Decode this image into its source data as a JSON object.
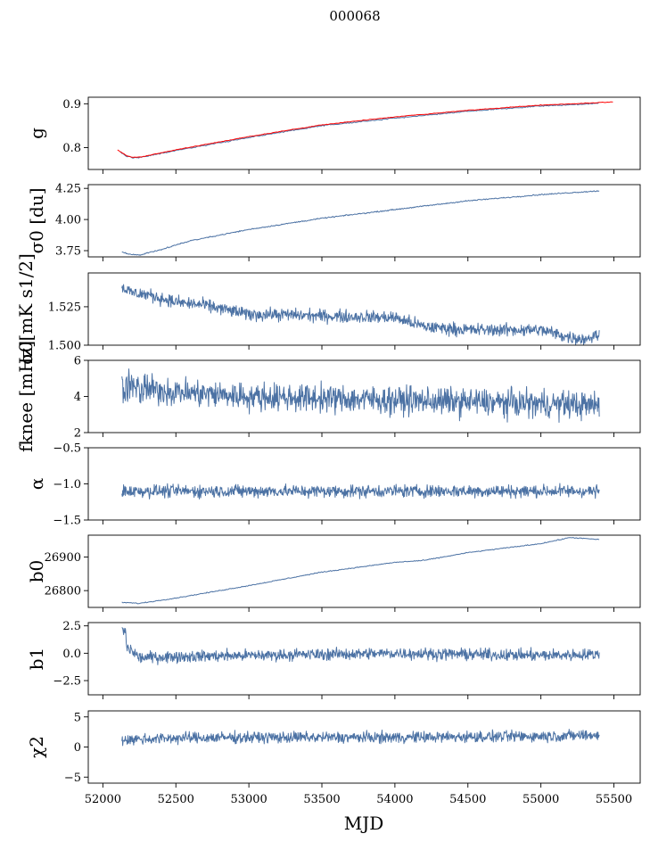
{
  "figure": {
    "title": "000068"
  },
  "colors": {
    "series": "#4c72a4",
    "fit": "#ff0000"
  },
  "xaxis": {
    "label": "MJD",
    "range": [
      51900,
      55680
    ],
    "ticks": [
      52000,
      52500,
      53000,
      53500,
      54000,
      54500,
      55000,
      55500
    ],
    "tick_labels": [
      "52000",
      "52500",
      "53000",
      "53500",
      "54000",
      "54500",
      "55000",
      "55500"
    ]
  },
  "chart_data": [
    {
      "type": "line",
      "ylabel": "g",
      "ylim": [
        0.75,
        0.915
      ],
      "yticks": [
        0.8,
        0.9
      ],
      "ytick_labels": [
        "0.8",
        "0.9"
      ],
      "series": [
        {
          "role": "data",
          "x": [
            52120,
            52160,
            52200,
            52250,
            52300,
            52500,
            53000,
            53500,
            54000,
            54500,
            55000,
            55400
          ],
          "y": [
            0.79,
            0.78,
            0.777,
            0.778,
            0.78,
            0.793,
            0.823,
            0.85,
            0.867,
            0.883,
            0.895,
            0.901
          ]
        },
        {
          "role": "fit",
          "x": [
            52100,
            52160,
            52200,
            52250,
            52300,
            52500,
            53000,
            53500,
            54000,
            54500,
            55000,
            55500
          ],
          "y": [
            0.795,
            0.782,
            0.778,
            0.778,
            0.781,
            0.795,
            0.825,
            0.852,
            0.87,
            0.885,
            0.897,
            0.904
          ]
        }
      ]
    },
    {
      "type": "line",
      "ylabel": "σ0 [du]",
      "ylim": [
        3.7,
        4.28
      ],
      "yticks": [
        3.75,
        4.0,
        4.25
      ],
      "ytick_labels": [
        "3.75",
        "4.00",
        "4.25"
      ],
      "series": [
        {
          "x": [
            52130,
            52180,
            52250,
            52400,
            52600,
            53000,
            53500,
            54000,
            54500,
            55000,
            55400
          ],
          "y": [
            3.74,
            3.72,
            3.715,
            3.76,
            3.83,
            3.92,
            4.01,
            4.08,
            4.15,
            4.2,
            4.23
          ]
        }
      ]
    },
    {
      "type": "line",
      "ylabel": "σ0[mK s1/2]",
      "ylim": [
        1.5,
        1.547
      ],
      "yticks": [
        1.5,
        1.525
      ],
      "ytick_labels": [
        "1.500",
        "1.525"
      ],
      "series": [
        {
          "x": [
            52130,
            52200,
            52300,
            52500,
            52700,
            53000,
            53200,
            53500,
            54000,
            54200,
            54500,
            54800,
            55000,
            55200,
            55300,
            55400
          ],
          "y": [
            1.538,
            1.534,
            1.533,
            1.528,
            1.526,
            1.52,
            1.52,
            1.519,
            1.518,
            1.512,
            1.51,
            1.51,
            1.51,
            1.505,
            1.504,
            1.507
          ]
        }
      ]
    },
    {
      "type": "line",
      "ylabel": "fknee [mHz]",
      "ylim": [
        2,
        6
      ],
      "yticks": [
        2,
        4,
        6
      ],
      "ytick_labels": [
        "2",
        "4",
        "6"
      ],
      "series": [
        {
          "x": [
            52130,
            52300,
            52600,
            53000,
            53500,
            54000,
            54500,
            55000,
            55400
          ],
          "y": [
            4.6,
            4.4,
            4.2,
            4.0,
            3.9,
            3.8,
            3.7,
            3.6,
            3.5
          ]
        }
      ]
    },
    {
      "type": "line",
      "ylabel": "α",
      "ylim": [
        -1.5,
        -0.5
      ],
      "yticks": [
        -1.5,
        -1.0,
        -0.5
      ],
      "ytick_labels": [
        "−1.5",
        "−1.0",
        "−0.5"
      ],
      "series": [
        {
          "x": [
            52130,
            52500,
            53000,
            53500,
            54000,
            54500,
            55000,
            55400
          ],
          "y": [
            -1.1,
            -1.1,
            -1.1,
            -1.1,
            -1.1,
            -1.1,
            -1.1,
            -1.1
          ]
        }
      ]
    },
    {
      "type": "line",
      "ylabel": "b0",
      "ylim": [
        26750,
        26965
      ],
      "yticks": [
        26800,
        26900
      ],
      "ytick_labels": [
        "26800",
        "26900"
      ],
      "series": [
        {
          "x": [
            52130,
            52250,
            52500,
            52800,
            53000,
            53500,
            54000,
            54200,
            54500,
            55000,
            55200,
            55400
          ],
          "y": [
            26765,
            26762,
            26778,
            26800,
            26815,
            26855,
            26884,
            26890,
            26913,
            26940,
            26958,
            26952
          ]
        }
      ]
    },
    {
      "type": "line",
      "ylabel": "b1",
      "ylim": [
        -3.8,
        2.8
      ],
      "yticks": [
        -2.5,
        0.0,
        2.5
      ],
      "ytick_labels": [
        "−2.5",
        "0.0",
        "2.5"
      ],
      "series": [
        {
          "x": [
            52130,
            52250,
            52500,
            53000,
            53500,
            54000,
            54500,
            55000,
            55400
          ],
          "y": [
            1.0,
            -0.4,
            -0.3,
            -0.2,
            -0.1,
            0.0,
            -0.1,
            -0.2,
            -0.1
          ]
        }
      ]
    },
    {
      "type": "line",
      "ylabel": "χ2",
      "ylim": [
        -6,
        6
      ],
      "yticks": [
        -5,
        0,
        5
      ],
      "ytick_labels": [
        "−5",
        "0",
        "5"
      ],
      "series": [
        {
          "x": [
            52130,
            52500,
            53000,
            53500,
            54000,
            54500,
            55000,
            55400
          ],
          "y": [
            1.2,
            1.5,
            1.6,
            1.6,
            1.6,
            1.7,
            1.8,
            2.0
          ]
        }
      ]
    }
  ]
}
